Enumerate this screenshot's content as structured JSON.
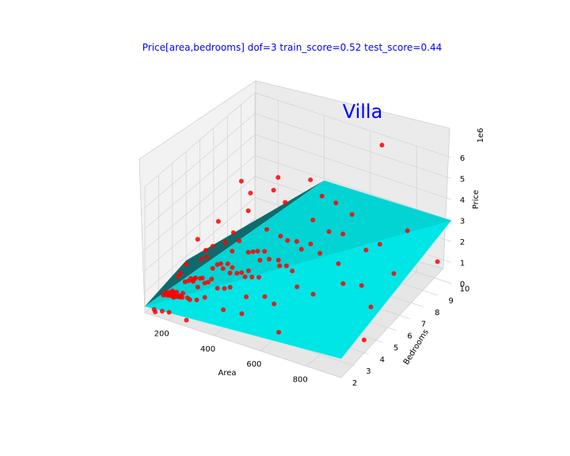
{
  "chart_data": {
    "type": "scatter3d",
    "title": "Price[area,bedrooms]  dof=3  train_score=0.52  test_score=0.44",
    "annotation": "Villa",
    "xlabel": "Area",
    "ylabel": "Bedrooms",
    "zlabel": "Price",
    "z_multiplier": "1e6",
    "xlim": [
      100,
      950
    ],
    "ylim": [
      2,
      10
    ],
    "zlim": [
      0,
      6
    ],
    "x_ticks": [
      "200",
      "400",
      "600",
      "800"
    ],
    "y_ticks": [
      "2",
      "3",
      "4",
      "5",
      "6",
      "7",
      "8",
      "9",
      "10"
    ],
    "z_ticks": [
      "0",
      "1",
      "2",
      "3",
      "4",
      "5",
      "6"
    ],
    "grid": true,
    "colors": {
      "points": "#ff0000",
      "surface": "#00e5e5",
      "surface_dark": "#0f6b6b",
      "title": "#0000ff"
    },
    "surface": {
      "type": "fitted_surface",
      "corners": [
        {
          "x": 100,
          "y": 2,
          "z": 0.3
        },
        {
          "x": 950,
          "y": 2,
          "z": 0.9
        },
        {
          "x": 950,
          "y": 10,
          "z": 3.0
        },
        {
          "x": 400,
          "y": 10,
          "z": 2.9
        },
        {
          "x": 100,
          "y": 5,
          "z": 0.8
        }
      ]
    },
    "points": [
      {
        "x": 120,
        "y": 3,
        "z": 0.35
      },
      {
        "x": 130,
        "y": 3,
        "z": 0.5
      },
      {
        "x": 140,
        "y": 2,
        "z": 0.3
      },
      {
        "x": 145,
        "y": 3,
        "z": 0.45
      },
      {
        "x": 150,
        "y": 3,
        "z": 0.6
      },
      {
        "x": 155,
        "y": 4,
        "z": 0.55
      },
      {
        "x": 160,
        "y": 3,
        "z": 0.7
      },
      {
        "x": 165,
        "y": 3,
        "z": 0.4
      },
      {
        "x": 170,
        "y": 4,
        "z": 0.65
      },
      {
        "x": 175,
        "y": 3,
        "z": 0.5
      },
      {
        "x": 180,
        "y": 4,
        "z": 0.8
      },
      {
        "x": 185,
        "y": 3,
        "z": 0.55
      },
      {
        "x": 190,
        "y": 4,
        "z": 0.7
      },
      {
        "x": 195,
        "y": 3,
        "z": 0.6
      },
      {
        "x": 200,
        "y": 4,
        "z": 0.9
      },
      {
        "x": 205,
        "y": 3,
        "z": 0.75
      },
      {
        "x": 210,
        "y": 4,
        "z": 0.5
      },
      {
        "x": 215,
        "y": 5,
        "z": 0.85
      },
      {
        "x": 220,
        "y": 4,
        "z": 0.95
      },
      {
        "x": 225,
        "y": 3,
        "z": 0.6
      },
      {
        "x": 230,
        "y": 4,
        "z": 1.0
      },
      {
        "x": 235,
        "y": 5,
        "z": 1.1
      },
      {
        "x": 240,
        "y": 4,
        "z": 0.8
      },
      {
        "x": 250,
        "y": 5,
        "z": 1.2
      },
      {
        "x": 255,
        "y": 4,
        "z": 0.9
      },
      {
        "x": 260,
        "y": 5,
        "z": 1.0
      },
      {
        "x": 270,
        "y": 4,
        "z": 1.1
      },
      {
        "x": 280,
        "y": 5,
        "z": 1.3
      },
      {
        "x": 290,
        "y": 5,
        "z": 0.9
      },
      {
        "x": 300,
        "y": 5,
        "z": 1.2
      },
      {
        "x": 310,
        "y": 6,
        "z": 1.4
      },
      {
        "x": 320,
        "y": 5,
        "z": 1.0
      },
      {
        "x": 330,
        "y": 6,
        "z": 1.5
      },
      {
        "x": 340,
        "y": 5,
        "z": 1.1
      },
      {
        "x": 350,
        "y": 6,
        "z": 1.6
      },
      {
        "x": 360,
        "y": 6,
        "z": 1.2
      },
      {
        "x": 370,
        "y": 5,
        "z": 1.3
      },
      {
        "x": 380,
        "y": 6,
        "z": 1.7
      },
      {
        "x": 400,
        "y": 6,
        "z": 1.4
      },
      {
        "x": 420,
        "y": 7,
        "z": 1.8
      },
      {
        "x": 440,
        "y": 6,
        "z": 1.5
      },
      {
        "x": 460,
        "y": 7,
        "z": 1.9
      },
      {
        "x": 480,
        "y": 7,
        "z": 1.6
      },
      {
        "x": 500,
        "y": 6,
        "z": 1.2
      },
      {
        "x": 520,
        "y": 7,
        "z": 2.0
      },
      {
        "x": 540,
        "y": 8,
        "z": 2.1
      },
      {
        "x": 560,
        "y": 7,
        "z": 1.7
      },
      {
        "x": 600,
        "y": 8,
        "z": 2.2
      },
      {
        "x": 640,
        "y": 7,
        "z": 1.5
      },
      {
        "x": 700,
        "y": 8,
        "z": 1.8
      },
      {
        "x": 760,
        "y": 8,
        "z": 2.3
      },
      {
        "x": 820,
        "y": 9,
        "z": 2.6
      },
      {
        "x": 300,
        "y": 3,
        "z": 0.9
      },
      {
        "x": 350,
        "y": 4,
        "z": 1.0
      },
      {
        "x": 420,
        "y": 4,
        "z": 0.8
      },
      {
        "x": 500,
        "y": 4,
        "z": 1.1
      },
      {
        "x": 580,
        "y": 5,
        "z": 1.3
      },
      {
        "x": 650,
        "y": 5,
        "z": 1.2
      },
      {
        "x": 720,
        "y": 6,
        "z": 1.4
      },
      {
        "x": 800,
        "y": 6,
        "z": 1.6
      },
      {
        "x": 880,
        "y": 7,
        "z": 1.9
      },
      {
        "x": 900,
        "y": 5,
        "z": 1.5
      },
      {
        "x": 250,
        "y": 7,
        "z": 2.6
      },
      {
        "x": 300,
        "y": 8,
        "z": 3.2
      },
      {
        "x": 350,
        "y": 8,
        "z": 2.8
      },
      {
        "x": 400,
        "y": 9,
        "z": 3.5
      },
      {
        "x": 180,
        "y": 6,
        "z": 2.4
      },
      {
        "x": 220,
        "y": 7,
        "z": 3.9
      },
      {
        "x": 260,
        "y": 9,
        "z": 3.1
      },
      {
        "x": 450,
        "y": 9,
        "z": 2.9
      },
      {
        "x": 150,
        "y": 5,
        "z": 2.0
      },
      {
        "x": 200,
        "y": 8,
        "z": 2.7
      },
      {
        "x": 650,
        "y": 10,
        "z": 5.5
      },
      {
        "x": 950,
        "y": 9,
        "z": 1.6
      },
      {
        "x": 930,
        "y": 4,
        "z": 0.6
      },
      {
        "x": 620,
        "y": 3,
        "z": 0.4
      },
      {
        "x": 280,
        "y": 2,
        "z": 0.3
      },
      {
        "x": 380,
        "y": 3,
        "z": 0.6
      },
      {
        "x": 460,
        "y": 3,
        "z": 0.7
      },
      {
        "x": 540,
        "y": 4,
        "z": 0.9
      },
      {
        "x": 125,
        "y": 4,
        "z": 0.7
      },
      {
        "x": 135,
        "y": 4,
        "z": 0.9
      },
      {
        "x": 165,
        "y": 5,
        "z": 1.1
      },
      {
        "x": 190,
        "y": 5,
        "z": 1.3
      },
      {
        "x": 210,
        "y": 6,
        "z": 1.5
      },
      {
        "x": 240,
        "y": 6,
        "z": 1.2
      },
      {
        "x": 270,
        "y": 6,
        "z": 1.8
      },
      {
        "x": 330,
        "y": 7,
        "z": 2.0
      },
      {
        "x": 390,
        "y": 7,
        "z": 1.9
      },
      {
        "x": 470,
        "y": 8,
        "z": 2.4
      },
      {
        "x": 510,
        "y": 9,
        "z": 2.8
      },
      {
        "x": 580,
        "y": 9,
        "z": 2.5
      },
      {
        "x": 145,
        "y": 2,
        "z": 0.2
      },
      {
        "x": 175,
        "y": 2,
        "z": 0.35
      },
      {
        "x": 205,
        "y": 2,
        "z": 0.4
      },
      {
        "x": 235,
        "y": 3,
        "z": 0.55
      },
      {
        "x": 265,
        "y": 3,
        "z": 0.65
      },
      {
        "x": 295,
        "y": 4,
        "z": 0.75
      },
      {
        "x": 325,
        "y": 4,
        "z": 0.85
      },
      {
        "x": 355,
        "y": 5,
        "z": 0.95
      },
      {
        "x": 385,
        "y": 5,
        "z": 1.05
      },
      {
        "x": 415,
        "y": 5,
        "z": 1.15
      },
      {
        "x": 445,
        "y": 6,
        "z": 1.25
      },
      {
        "x": 475,
        "y": 6,
        "z": 1.35
      },
      {
        "x": 160,
        "y": 4,
        "z": 1.4
      },
      {
        "x": 185,
        "y": 5,
        "z": 1.6
      },
      {
        "x": 215,
        "y": 5,
        "z": 1.9
      },
      {
        "x": 245,
        "y": 6,
        "z": 2.1
      },
      {
        "x": 128,
        "y": 3,
        "z": 0.45
      },
      {
        "x": 138,
        "y": 3,
        "z": 0.55
      },
      {
        "x": 148,
        "y": 3,
        "z": 0.5
      },
      {
        "x": 158,
        "y": 3,
        "z": 0.6
      },
      {
        "x": 168,
        "y": 3,
        "z": 0.65
      },
      {
        "x": 178,
        "y": 3,
        "z": 0.7
      },
      {
        "x": 188,
        "y": 4,
        "z": 0.75
      },
      {
        "x": 198,
        "y": 4,
        "z": 0.85
      },
      {
        "x": 132,
        "y": 3,
        "z": 0.4
      },
      {
        "x": 142,
        "y": 3,
        "z": 0.42
      },
      {
        "x": 152,
        "y": 3,
        "z": 0.44
      },
      {
        "x": 162,
        "y": 3,
        "z": 0.46
      },
      {
        "x": 172,
        "y": 3,
        "z": 0.48
      },
      {
        "x": 182,
        "y": 3,
        "z": 0.5
      },
      {
        "x": 192,
        "y": 3,
        "z": 0.52
      },
      {
        "x": 202,
        "y": 3,
        "z": 0.54
      }
    ]
  }
}
